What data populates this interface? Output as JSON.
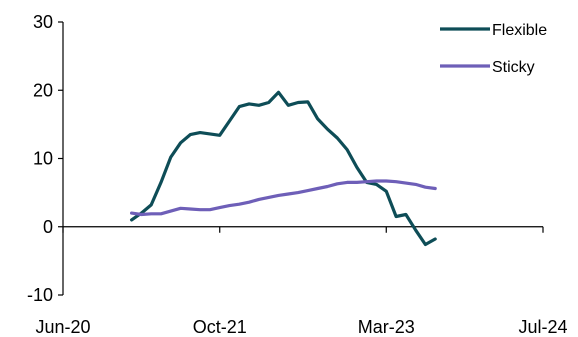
{
  "chart_data": {
    "type": "line",
    "title": "",
    "xlabel": "",
    "ylabel": "",
    "x_tick_labels": [
      "Jun-20",
      "Oct-21",
      "Mar-23",
      "Jul-24"
    ],
    "x_ticks": [
      "2020-06",
      "2021-10",
      "2023-03",
      "2024-07"
    ],
    "y_ticks": [
      -10,
      0,
      10,
      20,
      30
    ],
    "ylim": [
      -10,
      30
    ],
    "xlim": [
      "2020-06",
      "2024-07"
    ],
    "grid": false,
    "legend": {
      "placement": "top-right"
    },
    "x": [
      "2021-01",
      "2021-02",
      "2021-03",
      "2021-04",
      "2021-05",
      "2021-06",
      "2021-07",
      "2021-08",
      "2021-09",
      "2021-10",
      "2021-11",
      "2021-12",
      "2022-01",
      "2022-02",
      "2022-03",
      "2022-04",
      "2022-05",
      "2022-06",
      "2022-07",
      "2022-08",
      "2022-09",
      "2022-10",
      "2022-11",
      "2022-12",
      "2023-01",
      "2023-02",
      "2023-03",
      "2023-04",
      "2023-05",
      "2023-06",
      "2023-07",
      "2023-08"
    ],
    "series": [
      {
        "name": "Flexible",
        "color": "#0e4d57",
        "values": [
          1.0,
          2.0,
          3.2,
          6.5,
          10.2,
          12.3,
          13.5,
          13.8,
          13.6,
          13.4,
          15.5,
          17.6,
          18.0,
          17.8,
          18.2,
          19.7,
          17.8,
          18.2,
          18.3,
          15.8,
          14.3,
          13.0,
          11.3,
          8.7,
          6.5,
          6.2,
          5.2,
          1.5,
          1.8,
          -0.5,
          -2.6,
          -1.8
        ]
      },
      {
        "name": "Sticky",
        "color": "#6e5fb8",
        "values": [
          2.0,
          1.8,
          1.9,
          1.9,
          2.3,
          2.7,
          2.6,
          2.5,
          2.5,
          2.8,
          3.1,
          3.3,
          3.6,
          4.0,
          4.3,
          4.6,
          4.8,
          5.0,
          5.3,
          5.6,
          5.9,
          6.3,
          6.5,
          6.5,
          6.6,
          6.7,
          6.7,
          6.6,
          6.4,
          6.2,
          5.8,
          5.6
        ]
      }
    ]
  }
}
